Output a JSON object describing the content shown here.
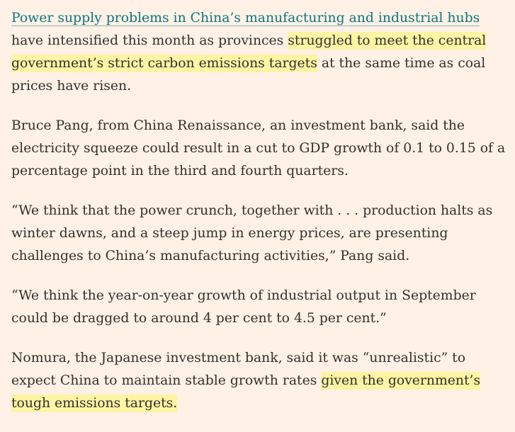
{
  "article": {
    "p1": {
      "link": "Power supply problems in China’s manufacturing and industrial hubs ",
      "text1": "have intensified this month as provinces ",
      "highlight": "struggled to meet the central government’s strict carbon emissions targets",
      "text2": " at the same time as coal prices have risen."
    },
    "p2": "Bruce Pang, from China Renaissance, an investment bank, said the electricity squeeze could result in a cut to GDP growth of 0.1 to 0.15 of a percentage point in the third and fourth quarters.",
    "p3": "“We think that the power crunch, together with . . . production halts as winter dawns, and a steep jump in energy prices, are presenting challenges to China’s manufacturing activities,” Pang said.",
    "p4": "“We think the year-on-year growth of industrial output in September could be dragged to around 4 per cent to 4.5 per cent.”",
    "p5": {
      "text1": "Nomura, the Japanese investment bank, said it was “unrealistic” to expect China to maintain stable growth rates ",
      "highlight": "given the government’s tough emissions targets."
    }
  },
  "colors": {
    "background": "#fff1e5",
    "text": "#33302e",
    "link": "#0d7680",
    "highlight": "#fdf4a4"
  }
}
